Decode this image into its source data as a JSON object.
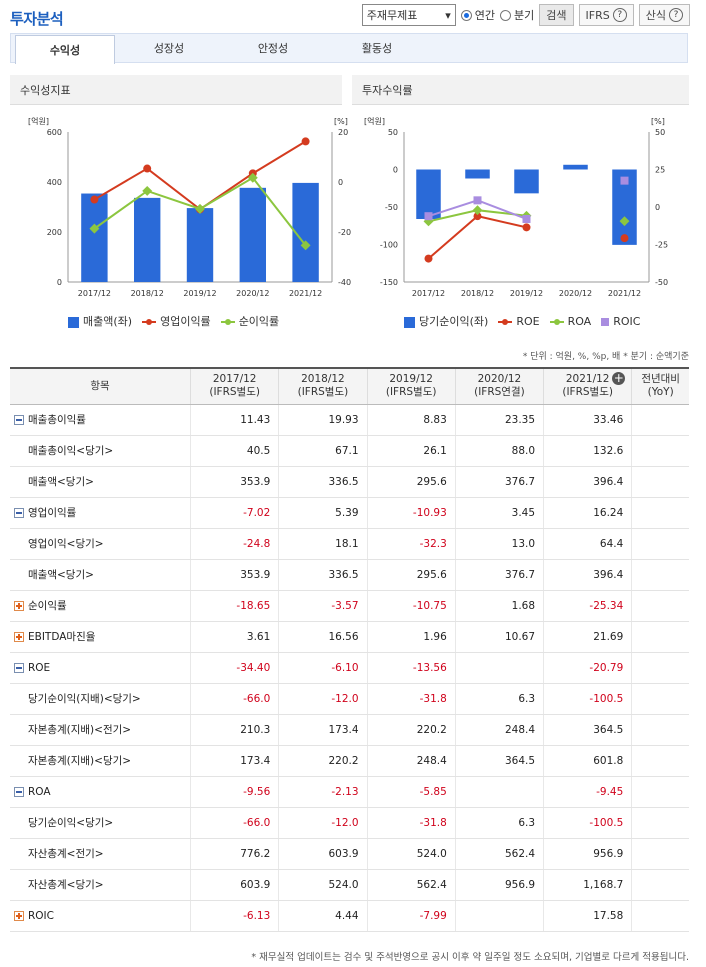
{
  "title": "투자분석",
  "controls": {
    "select_value": "주재무제표",
    "radio_annual": "연간",
    "radio_quarter": "분기",
    "search": "검색",
    "ifrs": "IFRS",
    "formula": "산식"
  },
  "tabs": [
    "수익성",
    "성장성",
    "안정성",
    "활동성"
  ],
  "chart1": {
    "title": "수익성지표",
    "unit_left": "[억원]",
    "unit_right": "[%]",
    "left_ticks": [
      "600",
      "400",
      "200",
      "0"
    ],
    "right_ticks": [
      "20",
      "0",
      "-20",
      "-40"
    ],
    "categories": [
      "2017/12",
      "2018/12",
      "2019/12",
      "2020/12",
      "2021/12"
    ],
    "legend": [
      "매출액(좌)",
      "영업이익률",
      "순이익률"
    ]
  },
  "chart2": {
    "title": "투자수익률",
    "unit_left": "[억원]",
    "unit_right": "[%]",
    "left_ticks": [
      "50",
      "0",
      "-50",
      "-100",
      "-150"
    ],
    "right_ticks": [
      "50",
      "25",
      "0",
      "-25",
      "-50"
    ],
    "categories": [
      "2017/12",
      "2018/12",
      "2019/12",
      "2020/12",
      "2021/12"
    ],
    "legend": [
      "당기순이익(좌)",
      "ROE",
      "ROA",
      "ROIC"
    ]
  },
  "chart_data": [
    {
      "type": "bar",
      "title": "수익성지표",
      "categories": [
        "2017/12",
        "2018/12",
        "2019/12",
        "2020/12",
        "2021/12"
      ],
      "ylim": [
        0,
        600
      ],
      "y2lim": [
        -40,
        20
      ],
      "series": [
        {
          "name": "매출액(좌)",
          "type": "bar",
          "axis": "left",
          "color": "#2a6ad8",
          "values": [
            353.9,
            336.5,
            295.6,
            376.7,
            396.4
          ]
        },
        {
          "name": "영업이익률",
          "type": "line",
          "axis": "right",
          "color": "#d43b1f",
          "values": [
            -7.02,
            5.39,
            -10.93,
            3.45,
            16.24
          ]
        },
        {
          "name": "순이익률",
          "type": "line",
          "axis": "right",
          "color": "#8cc63f",
          "values": [
            -18.65,
            -3.57,
            -10.75,
            1.68,
            -25.34
          ]
        }
      ]
    },
    {
      "type": "bar",
      "title": "투자수익률",
      "categories": [
        "2017/12",
        "2018/12",
        "2019/12",
        "2020/12",
        "2021/12"
      ],
      "ylim": [
        -150,
        50
      ],
      "y2lim": [
        -50,
        50
      ],
      "series": [
        {
          "name": "당기순이익(좌)",
          "type": "bar",
          "axis": "left",
          "color": "#2a6ad8",
          "values": [
            -66.0,
            -12.0,
            -31.8,
            6.3,
            -100.5
          ]
        },
        {
          "name": "ROE",
          "type": "line",
          "axis": "right",
          "color": "#d43b1f",
          "values": [
            -34.4,
            -6.1,
            -13.56,
            null,
            -20.79
          ]
        },
        {
          "name": "ROA",
          "type": "line",
          "axis": "right",
          "color": "#8cc63f",
          "values": [
            -9.56,
            -2.13,
            -5.85,
            null,
            -9.45
          ]
        },
        {
          "name": "ROIC",
          "type": "line",
          "axis": "right",
          "color": "#a98de0",
          "values": [
            -6.13,
            4.44,
            -7.99,
            null,
            17.58
          ]
        }
      ]
    }
  ],
  "note": "* 단위 : 억원, %, %p, 배   * 분기 : 순액기준",
  "table": {
    "headers": [
      "항목",
      "2017/12\n(IFRS별도)",
      "2018/12\n(IFRS별도)",
      "2019/12\n(IFRS별도)",
      "2020/12\n(IFRS연결)",
      "2021/12\n(IFRS별도)",
      "전년대비\n(YoY)"
    ],
    "rows": [
      {
        "label": "매출총이익률",
        "icon": "minus",
        "sub": false,
        "values": [
          "11.43",
          "19.93",
          "8.83",
          "23.35",
          "33.46",
          ""
        ]
      },
      {
        "label": "매출총이익<당기>",
        "icon": "",
        "sub": true,
        "values": [
          "40.5",
          "67.1",
          "26.1",
          "88.0",
          "132.6",
          ""
        ]
      },
      {
        "label": "매출액<당기>",
        "icon": "",
        "sub": true,
        "values": [
          "353.9",
          "336.5",
          "295.6",
          "376.7",
          "396.4",
          ""
        ]
      },
      {
        "label": "영업이익률",
        "icon": "minus",
        "sub": false,
        "values": [
          "-7.02",
          "5.39",
          "-10.93",
          "3.45",
          "16.24",
          ""
        ]
      },
      {
        "label": "영업이익<당기>",
        "icon": "",
        "sub": true,
        "values": [
          "-24.8",
          "18.1",
          "-32.3",
          "13.0",
          "64.4",
          ""
        ]
      },
      {
        "label": "매출액<당기>",
        "icon": "",
        "sub": true,
        "values": [
          "353.9",
          "336.5",
          "295.6",
          "376.7",
          "396.4",
          ""
        ]
      },
      {
        "label": "순이익률",
        "icon": "plus",
        "sub": false,
        "values": [
          "-18.65",
          "-3.57",
          "-10.75",
          "1.68",
          "-25.34",
          ""
        ]
      },
      {
        "label": "EBITDA마진율",
        "icon": "plus",
        "sub": false,
        "values": [
          "3.61",
          "16.56",
          "1.96",
          "10.67",
          "21.69",
          ""
        ]
      },
      {
        "label": "ROE",
        "icon": "minus",
        "sub": false,
        "values": [
          "-34.40",
          "-6.10",
          "-13.56",
          "",
          "-20.79",
          ""
        ]
      },
      {
        "label": "당기순이익(지배)<당기>",
        "icon": "",
        "sub": true,
        "values": [
          "-66.0",
          "-12.0",
          "-31.8",
          "6.3",
          "-100.5",
          ""
        ]
      },
      {
        "label": "자본총계(지배)<전기>",
        "icon": "",
        "sub": true,
        "values": [
          "210.3",
          "173.4",
          "220.2",
          "248.4",
          "364.5",
          ""
        ]
      },
      {
        "label": "자본총계(지배)<당기>",
        "icon": "",
        "sub": true,
        "values": [
          "173.4",
          "220.2",
          "248.4",
          "364.5",
          "601.8",
          ""
        ]
      },
      {
        "label": "ROA",
        "icon": "minus",
        "sub": false,
        "values": [
          "-9.56",
          "-2.13",
          "-5.85",
          "",
          "-9.45",
          ""
        ]
      },
      {
        "label": "당기순이익<당기>",
        "icon": "",
        "sub": true,
        "values": [
          "-66.0",
          "-12.0",
          "-31.8",
          "6.3",
          "-100.5",
          ""
        ]
      },
      {
        "label": "자산총계<전기>",
        "icon": "",
        "sub": true,
        "values": [
          "776.2",
          "603.9",
          "524.0",
          "562.4",
          "956.9",
          ""
        ]
      },
      {
        "label": "자산총계<당기>",
        "icon": "",
        "sub": true,
        "values": [
          "603.9",
          "524.0",
          "562.4",
          "956.9",
          "1,168.7",
          ""
        ]
      },
      {
        "label": "ROIC",
        "icon": "plus",
        "sub": false,
        "values": [
          "-6.13",
          "4.44",
          "-7.99",
          "",
          "17.58",
          ""
        ]
      }
    ]
  },
  "footnote": "* 재무실적 업데이트는 검수 및 주석반영으로 공시 이후 약 일주일 정도 소요되며, 기업별로 다르게 적용됩니다."
}
